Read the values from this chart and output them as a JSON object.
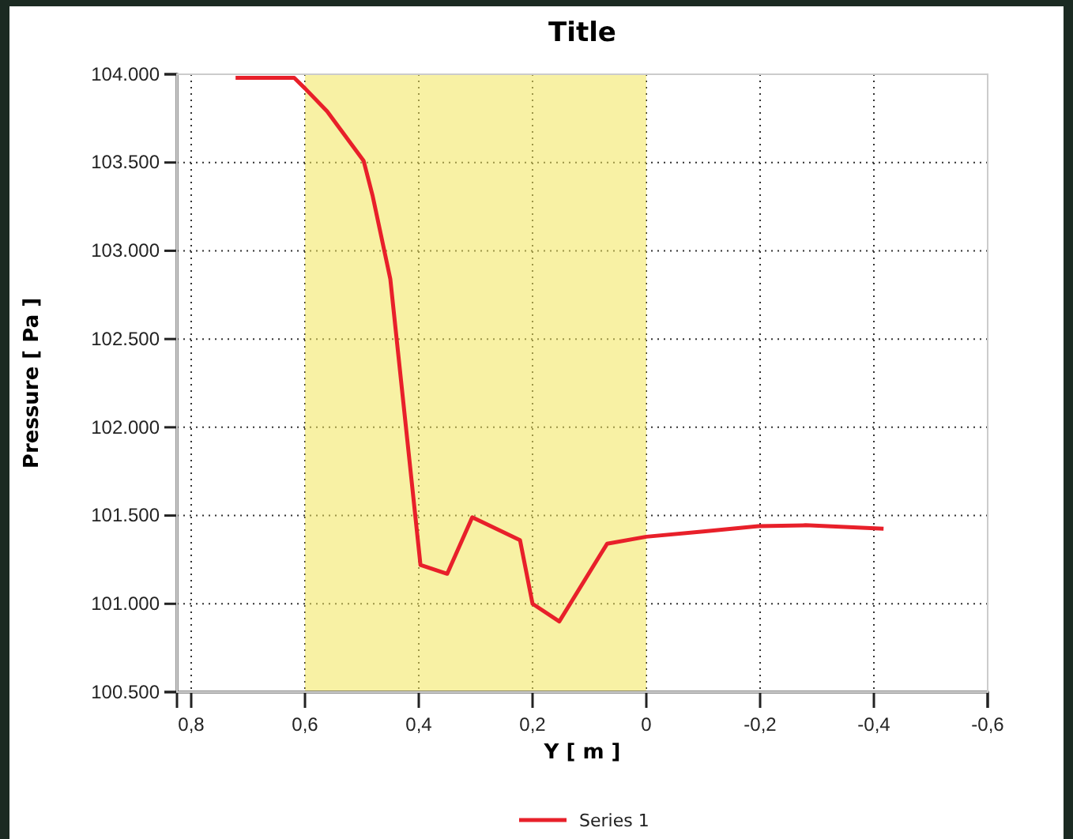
{
  "chart_data": {
    "type": "line",
    "title": "Title",
    "xlabel": "Y [ m ]",
    "ylabel": "Pressure [ Pa ]",
    "xlim": [
      0.825,
      -0.6
    ],
    "xticks": [
      {
        "value": 0.8,
        "label": "0,8"
      },
      {
        "value": 0.6,
        "label": "0,6"
      },
      {
        "value": 0.4,
        "label": "0,4"
      },
      {
        "value": 0.2,
        "label": "0,2"
      },
      0,
      {
        "value": -0.2,
        "label": "-0,2"
      },
      {
        "value": -0.4,
        "label": "-0,4"
      },
      {
        "value": -0.6,
        "label": "-0,6"
      }
    ],
    "ylim": [
      100500,
      104000
    ],
    "yticks": [
      {
        "value": 100500,
        "label": "100.500"
      },
      {
        "value": 101000,
        "label": "101.000"
      },
      {
        "value": 101500,
        "label": "101.500"
      },
      {
        "value": 102000,
        "label": "102.000"
      },
      {
        "value": 102500,
        "label": "102.500"
      },
      {
        "value": 103000,
        "label": "103.000"
      },
      {
        "value": 103500,
        "label": "103.500"
      },
      {
        "value": 104000,
        "label": "104.000"
      }
    ],
    "x": [
      0.722,
      0.619,
      0.6,
      0.561,
      0.497,
      0.481,
      0.45,
      0.397,
      0.35,
      0.306,
      0.222,
      0.2,
      0.153,
      0.069,
      0,
      -0.1,
      -0.197,
      -0.28,
      -0.417
    ],
    "series": [
      {
        "name": "Series 1",
        "color": "#e8202a",
        "values": [
          103980,
          103980,
          103920,
          103790,
          103510,
          103310,
          102840,
          101220,
          101170,
          101490,
          101360,
          101000,
          100900,
          101340,
          101380,
          101410,
          101440,
          101445,
          101425
        ]
      }
    ],
    "bands": [
      {
        "axis": "x",
        "from": 0.6,
        "to": 0,
        "color": "#f2e55a"
      }
    ],
    "grid": true,
    "legend": "bottom",
    "line_style": "solid",
    "marker": "none"
  }
}
